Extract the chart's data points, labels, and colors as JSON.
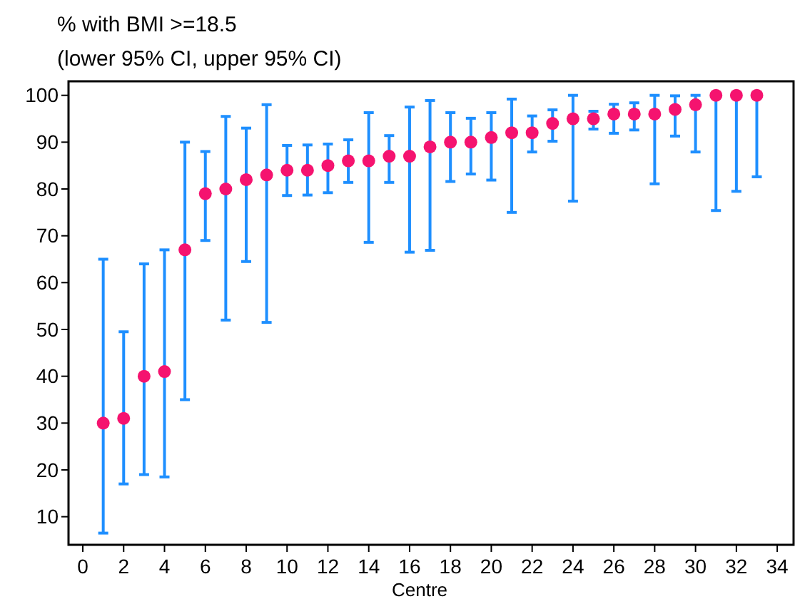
{
  "chart_data": {
    "type": "scatter",
    "title": "% with BMI >=18.5",
    "subtitle": "(lower 95% CI, upper 95% CI)",
    "xlabel": "Centre",
    "x": [
      1,
      2,
      3,
      4,
      5,
      6,
      7,
      8,
      9,
      10,
      11,
      12,
      13,
      14,
      15,
      16,
      17,
      18,
      19,
      20,
      21,
      22,
      23,
      24,
      25,
      26,
      27,
      28,
      29,
      30,
      31,
      32,
      33
    ],
    "series": [
      {
        "color": "#f5136f",
        "values": [
          30,
          31,
          40,
          41,
          67,
          79,
          80,
          82,
          83,
          84,
          84,
          85,
          86,
          86,
          87,
          87,
          89,
          90,
          90,
          91,
          92,
          92,
          94,
          95,
          95,
          96,
          96,
          96,
          97,
          98,
          100,
          100,
          100
        ],
        "errors": [
          [
            6.5,
            65
          ],
          [
            17,
            49.5
          ],
          [
            19,
            64
          ],
          [
            18.5,
            67
          ],
          [
            35,
            90
          ],
          [
            69,
            88
          ],
          [
            52,
            95.5
          ],
          [
            64.5,
            93
          ],
          [
            51.5,
            98
          ],
          [
            78.6,
            89.3
          ],
          [
            78.7,
            89.4
          ],
          [
            79.2,
            89.6
          ],
          [
            81.4,
            90.5
          ],
          [
            68.6,
            96.3
          ],
          [
            81.4,
            91.4
          ],
          [
            66.5,
            97.5
          ],
          [
            66.9,
            98.9
          ],
          [
            81.6,
            96.3
          ],
          [
            83.2,
            95.1
          ],
          [
            81.9,
            96.3
          ],
          [
            75,
            99.2
          ],
          [
            87.9,
            95.6
          ],
          [
            90.2,
            96.9
          ],
          [
            77.4,
            100
          ],
          [
            92.8,
            96.6
          ],
          [
            91.9,
            98.1
          ],
          [
            92.6,
            98.4
          ],
          [
            81.1,
            100
          ],
          [
            91.3,
            99.9
          ],
          [
            87.9,
            100
          ],
          [
            75.4,
            100
          ],
          [
            79.5,
            100
          ],
          [
            82.6,
            100
          ]
        ]
      }
    ],
    "xlim": [
      -0.7,
      34.8
    ],
    "ylim": [
      4,
      103
    ],
    "xticks": [
      0,
      2,
      4,
      6,
      8,
      10,
      12,
      14,
      16,
      18,
      20,
      22,
      24,
      26,
      28,
      30,
      32,
      34
    ],
    "yticks": [
      10,
      20,
      30,
      40,
      50,
      60,
      70,
      80,
      90,
      100
    ],
    "grid": false,
    "marker": "circle"
  }
}
